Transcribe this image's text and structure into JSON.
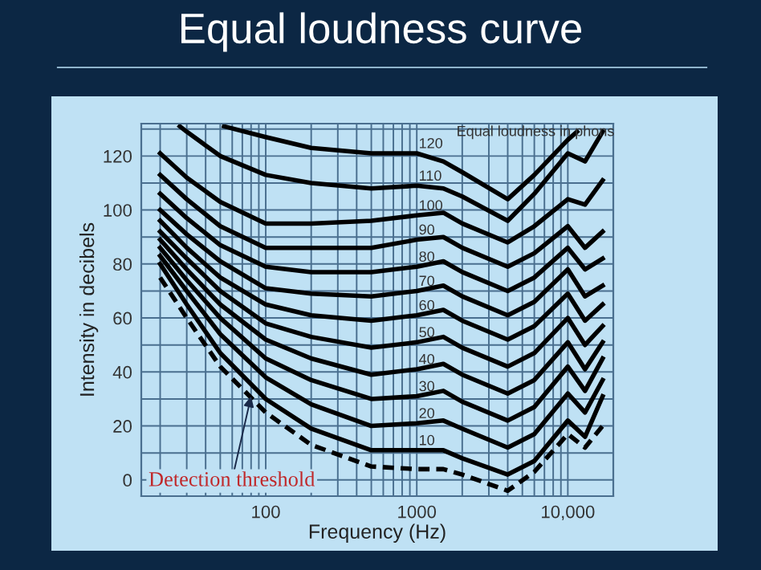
{
  "chart_data": {
    "type": "line",
    "title": "Equal loudness curve",
    "xlabel": "Frequency (Hz)",
    "ylabel": "Intensity in decibels",
    "log": "x",
    "annotations": [
      "Equal loudness in phons",
      {
        "text": "Detection threshold",
        "x": 80,
        "y": 31
      }
    ],
    "xlim": [
      15,
      20000
    ],
    "ylim": [
      -6,
      132
    ],
    "xticks": [
      {
        "value": 20,
        "label": null
      },
      {
        "value": 30,
        "label": null
      },
      {
        "value": 40,
        "label": null
      },
      {
        "value": 50,
        "label": null
      },
      {
        "value": 60,
        "label": null
      },
      {
        "value": 70,
        "label": null
      },
      {
        "value": 80,
        "label": null
      },
      {
        "value": 90,
        "label": null
      },
      100,
      {
        "value": 200,
        "label": null
      },
      {
        "value": 300,
        "label": null
      },
      {
        "value": 400,
        "label": null
      },
      {
        "value": 500,
        "label": null
      },
      {
        "value": 600,
        "label": null
      },
      {
        "value": 700,
        "label": null
      },
      {
        "value": 800,
        "label": null
      },
      {
        "value": 900,
        "label": null
      },
      1000,
      {
        "value": 2000,
        "label": null
      },
      {
        "value": 3000,
        "label": null
      },
      {
        "value": 4000,
        "label": null
      },
      {
        "value": 5000,
        "label": null
      },
      {
        "value": 6000,
        "label": null
      },
      {
        "value": 7000,
        "label": null
      },
      {
        "value": 8000,
        "label": null
      },
      {
        "value": 9000,
        "label": null
      },
      {
        "value": 10000,
        "label": "10,000"
      }
    ],
    "yticks": [
      0,
      {
        "value": 10,
        "label": null
      },
      20,
      {
        "value": 30,
        "label": null
      },
      40,
      {
        "value": 50,
        "label": null
      },
      60,
      {
        "value": 70,
        "label": null
      },
      80,
      {
        "value": 90,
        "label": null
      },
      100,
      {
        "value": 110,
        "label": null
      },
      120,
      {
        "value": 130,
        "label": null
      }
    ],
    "grid": true,
    "legend": false,
    "marker": "none",
    "line_style": "solid",
    "x": [
      20,
      30,
      50,
      100,
      200,
      500,
      1000,
      1500,
      2000,
      4000,
      6000,
      10000,
      13000,
      17000
    ],
    "series": [
      {
        "color": "#000000",
        "line_style": "dashed",
        "values": [
          75,
          60,
          42,
          25,
          13,
          5,
          4,
          4,
          2,
          -4,
          3,
          17,
          12,
          20
        ]
      },
      {
        "name": "10",
        "color": "#000000",
        "values": [
          80,
          65,
          47,
          30,
          19,
          11,
          11,
          11,
          8,
          2,
          7,
          22,
          16,
          31
        ]
      },
      {
        "name": "20",
        "color": "#000000",
        "values": [
          83,
          70,
          54,
          38,
          28,
          20,
          21,
          22,
          19,
          12,
          17,
          32,
          25,
          37
        ]
      },
      {
        "name": "30",
        "color": "#000000",
        "values": [
          86,
          74,
          60,
          45,
          37,
          30,
          31,
          33,
          29,
          22,
          27,
          42,
          33,
          45
        ]
      },
      {
        "name": "40",
        "color": "#000000",
        "values": [
          89,
          78,
          65,
          52,
          45,
          39,
          41,
          43,
          39,
          32,
          37,
          51,
          41,
          51
        ]
      },
      {
        "name": "50",
        "color": "#000000",
        "values": [
          92,
          82,
          70,
          58,
          53,
          49,
          51,
          53,
          49,
          42,
          47,
          60,
          50,
          57
        ]
      },
      {
        "name": "60",
        "color": "#000000",
        "values": [
          96,
          86,
          75,
          65,
          61,
          59,
          61,
          63,
          59,
          52,
          57,
          69,
          59,
          65
        ]
      },
      {
        "name": "70",
        "color": "#000000",
        "values": [
          100,
          91,
          81,
          71,
          69,
          68,
          70,
          72,
          68,
          61,
          66,
          78,
          68,
          72
        ]
      },
      {
        "name": "80",
        "color": "#000000",
        "values": [
          106,
          97,
          87,
          79,
          77,
          77,
          79,
          81,
          77,
          70,
          75,
          86,
          78,
          82
        ]
      },
      {
        "name": "90",
        "color": "#000000",
        "values": [
          113,
          104,
          94,
          86,
          86,
          86,
          89,
          90,
          86,
          79,
          84,
          94,
          86,
          92
        ]
      },
      {
        "name": "100",
        "color": "#000000",
        "values": [
          121,
          112,
          103,
          95,
          95,
          96,
          98,
          99,
          95,
          88,
          94,
          104,
          102,
          111
        ]
      },
      {
        "name": "110",
        "color": "#000000",
        "x": [
          27,
          30,
          50,
          100,
          200,
          500,
          1000,
          1500,
          2000,
          4000,
          6000,
          10000,
          13000,
          17000
        ],
        "values": [
          131,
          129,
          120,
          113,
          110,
          108,
          109,
          108,
          105,
          96,
          106,
          121,
          118,
          129
        ]
      },
      {
        "name": "120",
        "color": "#000000",
        "x": [
          53,
          100,
          200,
          500,
          1000,
          1500,
          2000,
          4000,
          6000,
          10000,
          11500
        ],
        "values": [
          131,
          127,
          123,
          121,
          121,
          118,
          114,
          104,
          113,
          126,
          129
        ]
      }
    ]
  }
}
